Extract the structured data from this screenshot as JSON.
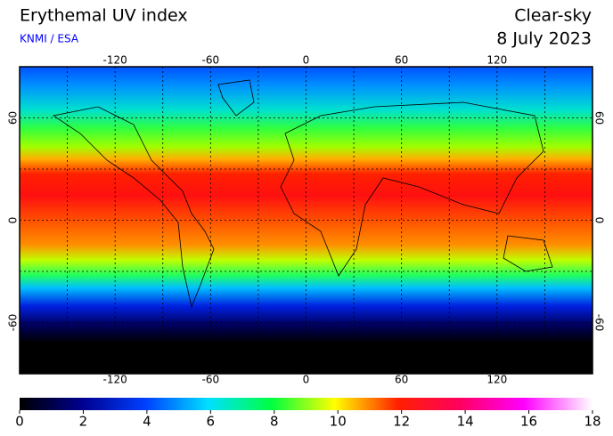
{
  "header": {
    "title": "Erythemal UV index",
    "source": "KNMI / ESA",
    "condition": "Clear-sky",
    "date": "8 July 2023"
  },
  "map": {
    "xlim": [
      -180,
      180
    ],
    "ylim": [
      -90,
      90
    ],
    "xticks": [
      -120,
      -60,
      0,
      60,
      120
    ],
    "yticks": [
      60,
      0,
      -60
    ]
  },
  "colorbar": {
    "range": [
      0,
      18
    ],
    "ticks": [
      0,
      2,
      4,
      6,
      8,
      10,
      12,
      14,
      16,
      18
    ]
  }
}
